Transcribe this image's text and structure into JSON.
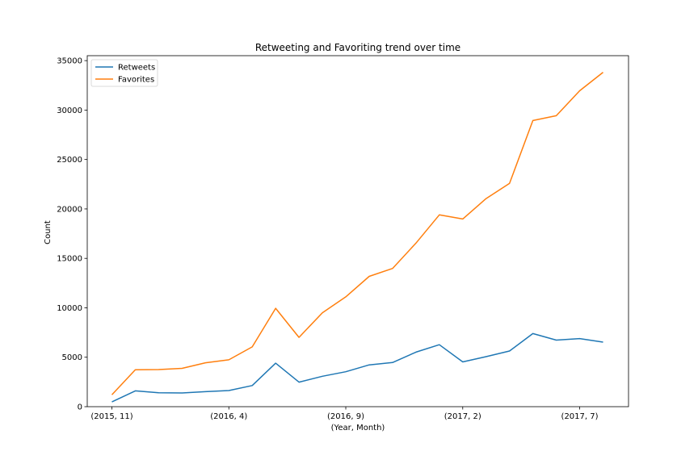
{
  "chart_data": {
    "type": "line",
    "title": "Retweeting and Favoriting trend over time",
    "xlabel": "(Year, Month)",
    "ylabel": "Count",
    "ylim": [
      0,
      35500
    ],
    "yticks": [
      0,
      5000,
      10000,
      15000,
      20000,
      25000,
      30000,
      35000
    ],
    "x": [
      "(2015, 11)",
      "(2015, 12)",
      "(2016, 1)",
      "(2016, 2)",
      "(2016, 3)",
      "(2016, 4)",
      "(2016, 5)",
      "(2016, 6)",
      "(2016, 7)",
      "(2016, 8)",
      "(2016, 9)",
      "(2016, 10)",
      "(2016, 11)",
      "(2016, 12)",
      "(2017, 1)",
      "(2017, 2)",
      "(2017, 3)",
      "(2017, 4)",
      "(2017, 5)",
      "(2017, 6)",
      "(2017, 7)",
      "(2017, 8)"
    ],
    "xtick_labels_shown": [
      "(2015, 11)",
      "(2016, 4)",
      "(2016, 9)",
      "(2017, 2)",
      "(2017, 7)"
    ],
    "series": [
      {
        "name": "Retweets",
        "color": "#1f77b4",
        "values": [
          480,
          1600,
          1400,
          1390,
          1520,
          1630,
          2140,
          4400,
          2480,
          3080,
          3530,
          4230,
          4460,
          5520,
          6270,
          4530,
          5060,
          5630,
          7390,
          6730,
          6890,
          6530
        ]
      },
      {
        "name": "Favorites",
        "color": "#ff7f0e",
        "values": [
          1200,
          3730,
          3750,
          3880,
          4440,
          4740,
          6050,
          9950,
          7010,
          9500,
          11110,
          13180,
          13980,
          16540,
          19400,
          18980,
          21050,
          22580,
          28940,
          29430,
          31950,
          33820
        ]
      }
    ],
    "legend": {
      "position": "top-left"
    },
    "grid": false
  }
}
